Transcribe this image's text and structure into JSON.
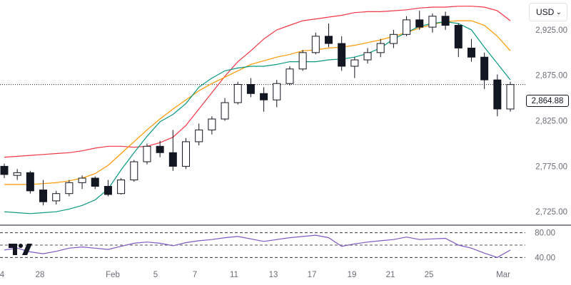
{
  "currency": {
    "label": "USD",
    "chevron_icon": "chevron-down-icon"
  },
  "last_price": {
    "label": "2,864.88",
    "value": 2864.88
  },
  "brand_icon": "tradingview-logo-icon",
  "colors": {
    "up_body": "#ffffff",
    "down_body": "#131722",
    "wick": "#131722",
    "upper_band": "#f23645",
    "middle_band": "#ff9800",
    "lower_band": "#089981",
    "rsi": "#7e57c2",
    "grid_dashed": "#131722",
    "text": "#6a6d78"
  },
  "chart_data": [
    {
      "type": "candlestick",
      "overlay": "bollinger_bands",
      "ylim": [
        2715,
        2950
      ],
      "ytick_labels": [
        "2,925.00",
        "2,875.00",
        "2,825.00",
        "2,775.00",
        "2,725.00"
      ],
      "yticks": [
        2925,
        2875,
        2825,
        2775,
        2725
      ],
      "xtick_labels": [
        "4",
        "28",
        "Feb",
        "5",
        "7",
        "11",
        "13",
        "17",
        "19",
        "21",
        "25",
        "Mar"
      ],
      "current_price_line": 2864.88,
      "upper_band": [
        2785,
        2786,
        2787,
        2788,
        2789,
        2790,
        2792,
        2795,
        2797,
        2797,
        2796,
        2797,
        2801,
        2807,
        2820,
        2838,
        2856,
        2874,
        2890,
        2902,
        2915,
        2925,
        2930,
        2935,
        2937,
        2939,
        2941,
        2944,
        2945,
        2945,
        2946,
        2947,
        2949,
        2950,
        2950,
        2951,
        2951,
        2950,
        2946,
        2935
      ],
      "middle_band": [
        2755,
        2755,
        2755,
        2756,
        2757,
        2759,
        2762,
        2767,
        2776,
        2789,
        2802,
        2815,
        2827,
        2838,
        2848,
        2858,
        2866,
        2873,
        2880,
        2887,
        2891,
        2895,
        2898,
        2902,
        2903,
        2905,
        2906,
        2908,
        2911,
        2914,
        2918,
        2922,
        2927,
        2931,
        2934,
        2935,
        2935,
        2930,
        2918,
        2902
      ],
      "lower_band": [
        2725,
        2724,
        2723,
        2724,
        2725,
        2728,
        2732,
        2738,
        2750,
        2771,
        2790,
        2808,
        2824,
        2832,
        2844,
        2862,
        2872,
        2880,
        2883,
        2885,
        2885,
        2887,
        2890,
        2890,
        2890,
        2892,
        2893,
        2895,
        2899,
        2905,
        2915,
        2922,
        2929,
        2932,
        2934,
        2932,
        2925,
        2906,
        2888,
        2870
      ],
      "candles": [
        [
          2775,
          2778,
          2762,
          2766
        ],
        [
          2765,
          2772,
          2760,
          2768
        ],
        [
          2768,
          2770,
          2745,
          2748
        ],
        [
          2749,
          2760,
          2732,
          2736
        ],
        [
          2737,
          2748,
          2733,
          2745
        ],
        [
          2745,
          2760,
          2742,
          2757
        ],
        [
          2757,
          2765,
          2750,
          2762
        ],
        [
          2762,
          2764,
          2750,
          2753
        ],
        [
          2753,
          2760,
          2742,
          2744
        ],
        [
          2745,
          2762,
          2744,
          2760
        ],
        [
          2760,
          2782,
          2758,
          2780
        ],
        [
          2780,
          2800,
          2777,
          2797
        ],
        [
          2797,
          2803,
          2785,
          2790
        ],
        [
          2790,
          2815,
          2770,
          2775
        ],
        [
          2775,
          2806,
          2772,
          2802
        ],
        [
          2802,
          2822,
          2798,
          2815
        ],
        [
          2815,
          2830,
          2810,
          2827
        ],
        [
          2827,
          2850,
          2825,
          2845
        ],
        [
          2845,
          2868,
          2843,
          2865
        ],
        [
          2865,
          2872,
          2851,
          2855
        ],
        [
          2855,
          2862,
          2835,
          2848
        ],
        [
          2848,
          2870,
          2840,
          2866
        ],
        [
          2866,
          2885,
          2864,
          2882
        ],
        [
          2882,
          2903,
          2880,
          2900
        ],
        [
          2900,
          2922,
          2898,
          2918
        ],
        [
          2918,
          2932,
          2906,
          2910
        ],
        [
          2910,
          2918,
          2880,
          2885
        ],
        [
          2885,
          2895,
          2872,
          2892
        ],
        [
          2892,
          2905,
          2888,
          2900
        ],
        [
          2900,
          2915,
          2895,
          2910
        ],
        [
          2910,
          2925,
          2905,
          2920
        ],
        [
          2920,
          2940,
          2918,
          2936
        ],
        [
          2936,
          2946,
          2925,
          2928
        ],
        [
          2928,
          2943,
          2922,
          2940
        ],
        [
          2940,
          2945,
          2925,
          2930
        ],
        [
          2930,
          2932,
          2895,
          2905
        ],
        [
          2905,
          2915,
          2890,
          2895
        ],
        [
          2895,
          2900,
          2860,
          2870
        ],
        [
          2870,
          2876,
          2830,
          2838
        ],
        [
          2838,
          2868,
          2835,
          2864.88
        ]
      ]
    },
    {
      "type": "line",
      "indicator": "RSI",
      "ylim": [
        30,
        90
      ],
      "ytick_labels": [
        "80.00",
        "40.00"
      ],
      "yticks": [
        80,
        40
      ],
      "reference_lines": [
        80,
        60,
        40
      ],
      "values": [
        52,
        55,
        49,
        46,
        50,
        55,
        57,
        55,
        53,
        58,
        63,
        65,
        63,
        59,
        64,
        67,
        69,
        72,
        74,
        70,
        66,
        69,
        72,
        74,
        76,
        72,
        58,
        62,
        65,
        67,
        69,
        73,
        69,
        70,
        71,
        60,
        55,
        47,
        40,
        52
      ]
    }
  ]
}
